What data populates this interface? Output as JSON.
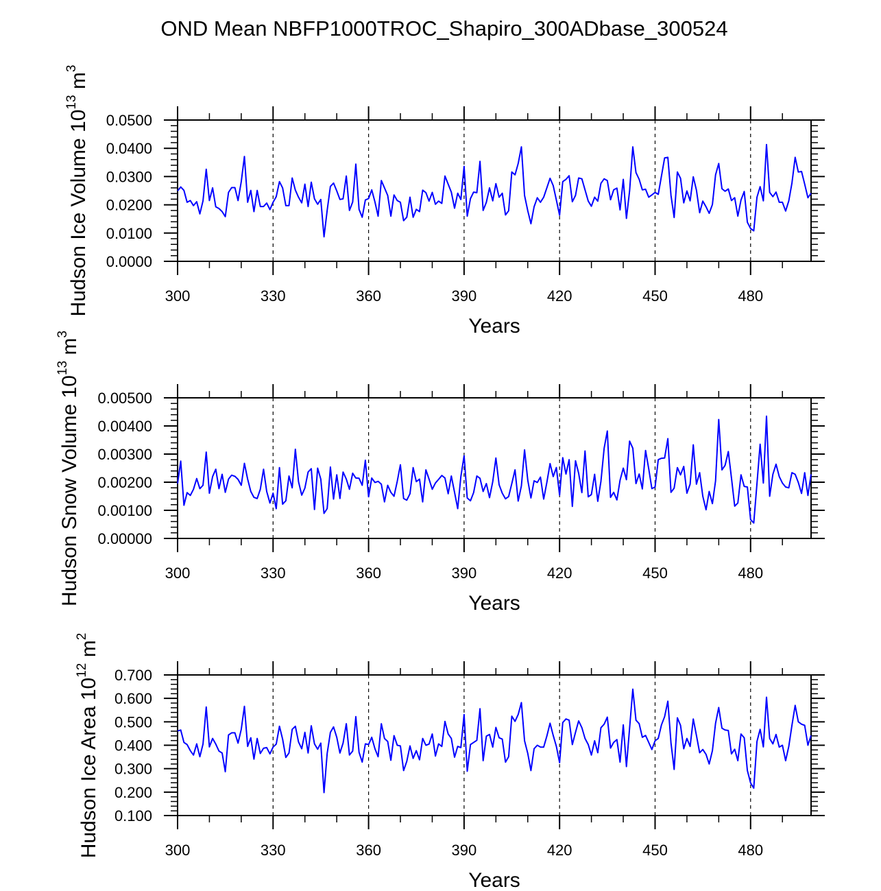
{
  "title": "OND Mean NBFP1000TROC_Shapiro_300ADbase_300524",
  "colors": {
    "line": "#0000ff",
    "axis": "#000000"
  },
  "chart_data": [
    {
      "type": "line",
      "ylabel": {
        "text": "Hudson Ice Volume 10",
        "exp": "13",
        "unit": " m",
        "unit_exp": "3"
      },
      "xlabel": "Years",
      "x_start": 300,
      "xlim": [
        300,
        499
      ],
      "xticks": [
        300,
        330,
        360,
        390,
        420,
        450,
        480
      ],
      "xtick_labels": [
        "300",
        "330",
        "360",
        "390",
        "420",
        "450",
        "480"
      ],
      "ylim": [
        0.0,
        0.05
      ],
      "yticks": [
        0.0,
        0.01,
        0.02,
        0.03,
        0.04,
        0.05
      ],
      "ytick_labels": [
        "0.0000",
        "0.0100",
        "0.0200",
        "0.0300",
        "0.0400",
        "0.0500"
      ],
      "yminor_step": 0.002,
      "grid": "dashed vertical lines at major x ticks",
      "values": [
        0.0249,
        0.0263,
        0.0251,
        0.0209,
        0.0215,
        0.0197,
        0.0211,
        0.0168,
        0.0214,
        0.0326,
        0.0215,
        0.026,
        0.0193,
        0.0187,
        0.0176,
        0.0158,
        0.0244,
        0.0261,
        0.0261,
        0.0215,
        0.0282,
        0.0371,
        0.0209,
        0.0251,
        0.0176,
        0.0251,
        0.0194,
        0.0194,
        0.0206,
        0.0183,
        0.0209,
        0.0229,
        0.0282,
        0.026,
        0.0197,
        0.0197,
        0.0295,
        0.0252,
        0.0227,
        0.0207,
        0.0273,
        0.0194,
        0.028,
        0.0221,
        0.0202,
        0.0219,
        0.0087,
        0.018,
        0.0265,
        0.0277,
        0.0249,
        0.0219,
        0.0221,
        0.0302,
        0.018,
        0.021,
        0.0344,
        0.0184,
        0.0156,
        0.0217,
        0.0222,
        0.0253,
        0.021,
        0.016,
        0.0286,
        0.026,
        0.0233,
        0.016,
        0.0235,
        0.0215,
        0.0209,
        0.0144,
        0.0156,
        0.0227,
        0.0156,
        0.0184,
        0.0176,
        0.0252,
        0.0243,
        0.0213,
        0.0244,
        0.0202,
        0.0213,
        0.0205,
        0.0302,
        0.0273,
        0.0245,
        0.0188,
        0.0241,
        0.0219,
        0.0336,
        0.016,
        0.0222,
        0.0245,
        0.0243,
        0.0354,
        0.018,
        0.0209,
        0.026,
        0.0214,
        0.0275,
        0.0227,
        0.0241,
        0.0164,
        0.0179,
        0.0316,
        0.0306,
        0.0346,
        0.0405,
        0.0233,
        0.0179,
        0.0133,
        0.0193,
        0.0225,
        0.0209,
        0.0227,
        0.026,
        0.0294,
        0.0268,
        0.0217,
        0.0163,
        0.0282,
        0.029,
        0.0303,
        0.0211,
        0.0233,
        0.0295,
        0.0292,
        0.0253,
        0.0213,
        0.0195,
        0.0227,
        0.0213,
        0.0276,
        0.0292,
        0.0286,
        0.0218,
        0.0253,
        0.0259,
        0.0182,
        0.029,
        0.0152,
        0.0249,
        0.0405,
        0.0314,
        0.029,
        0.0253,
        0.0255,
        0.0227,
        0.0235,
        0.0244,
        0.0237,
        0.0302,
        0.0366,
        0.0368,
        0.0233,
        0.0155,
        0.0316,
        0.0294,
        0.0207,
        0.0249,
        0.0214,
        0.0299,
        0.0252,
        0.0172,
        0.0213,
        0.0193,
        0.017,
        0.0201,
        0.0306,
        0.0346,
        0.0257,
        0.0248,
        0.0256,
        0.0215,
        0.0225,
        0.016,
        0.0217,
        0.0247,
        0.0138,
        0.0116,
        0.0108,
        0.0227,
        0.0264,
        0.0214,
        0.0413,
        0.0244,
        0.0229,
        0.0245,
        0.0209,
        0.0209,
        0.0178,
        0.0214,
        0.0277,
        0.0368,
        0.0316,
        0.0318,
        0.0273,
        0.0225,
        0.0241
      ]
    },
    {
      "type": "line",
      "ylabel": {
        "text": "Hudson Snow Volume 10",
        "exp": "13",
        "unit": " m",
        "unit_exp": "3"
      },
      "xlabel": "Years",
      "x_start": 300,
      "xlim": [
        300,
        499
      ],
      "xticks": [
        300,
        330,
        360,
        390,
        420,
        450,
        480
      ],
      "xtick_labels": [
        "300",
        "330",
        "360",
        "390",
        "420",
        "450",
        "480"
      ],
      "ylim": [
        0.0,
        0.005
      ],
      "yticks": [
        0.0,
        0.001,
        0.002,
        0.003,
        0.004,
        0.005
      ],
      "ytick_labels": [
        "0.00000",
        "0.00100",
        "0.00200",
        "0.00300",
        "0.00400",
        "0.00500"
      ],
      "yminor_step": 0.0002,
      "grid": "dashed vertical lines at major x ticks",
      "values": [
        0.00195,
        0.00275,
        0.00118,
        0.00163,
        0.00153,
        0.00175,
        0.00213,
        0.00177,
        0.00189,
        0.00307,
        0.00161,
        0.0022,
        0.00246,
        0.00177,
        0.00228,
        0.00164,
        0.00211,
        0.00225,
        0.00221,
        0.0021,
        0.00189,
        0.00267,
        0.00211,
        0.00167,
        0.00146,
        0.00142,
        0.00175,
        0.00246,
        0.00167,
        0.00126,
        0.00161,
        0.00106,
        0.00252,
        0.00122,
        0.00134,
        0.00222,
        0.0018,
        0.00317,
        0.00202,
        0.00154,
        0.00179,
        0.00236,
        0.00248,
        0.00103,
        0.0025,
        0.00211,
        0.00089,
        0.00106,
        0.00254,
        0.0014,
        0.00226,
        0.00142,
        0.00236,
        0.00211,
        0.00175,
        0.00232,
        0.00215,
        0.00214,
        0.00189,
        0.00278,
        0.00148,
        0.00215,
        0.00199,
        0.00203,
        0.00193,
        0.0013,
        0.00189,
        0.00164,
        0.0015,
        0.00203,
        0.00262,
        0.00142,
        0.00136,
        0.00159,
        0.00252,
        0.00202,
        0.00211,
        0.0013,
        0.00244,
        0.00211,
        0.00175,
        0.00197,
        0.0021,
        0.00224,
        0.00215,
        0.00159,
        0.00222,
        0.00164,
        0.00106,
        0.0022,
        0.00294,
        0.00144,
        0.00134,
        0.00163,
        0.00222,
        0.00214,
        0.00167,
        0.00195,
        0.00145,
        0.00202,
        0.00286,
        0.00191,
        0.00161,
        0.00141,
        0.00149,
        0.00195,
        0.00244,
        0.00133,
        0.00187,
        0.00315,
        0.00207,
        0.00144,
        0.00205,
        0.00199,
        0.00218,
        0.0014,
        0.00199,
        0.00266,
        0.0022,
        0.00252,
        0.00154,
        0.00287,
        0.00229,
        0.0028,
        0.00114,
        0.00276,
        0.00232,
        0.00163,
        0.00311,
        0.00148,
        0.00156,
        0.00228,
        0.00132,
        0.00203,
        0.00321,
        0.00382,
        0.00146,
        0.00164,
        0.00137,
        0.00207,
        0.0025,
        0.00209,
        0.00346,
        0.00321,
        0.00195,
        0.00229,
        0.00176,
        0.00313,
        0.00248,
        0.00177,
        0.00183,
        0.0028,
        0.00285,
        0.00286,
        0.00355,
        0.00164,
        0.00179,
        0.00252,
        0.00226,
        0.00256,
        0.00161,
        0.00193,
        0.00333,
        0.00193,
        0.00234,
        0.0015,
        0.00102,
        0.00167,
        0.00124,
        0.00205,
        0.00423,
        0.00244,
        0.0026,
        0.00309,
        0.00215,
        0.00115,
        0.00126,
        0.00226,
        0.00185,
        0.00183,
        0.00067,
        0.00055,
        0.00195,
        0.00335,
        0.00197,
        0.00435,
        0.0015,
        0.00228,
        0.00264,
        0.0022,
        0.00197,
        0.00183,
        0.0018,
        0.00234,
        0.00228,
        0.00199,
        0.0016,
        0.00234,
        0.00153,
        0.00228
      ]
    },
    {
      "type": "line",
      "ylabel": {
        "text": "Hudson Ice Area 10",
        "exp": "12",
        "unit": " m",
        "unit_exp": "2"
      },
      "xlabel": "Years",
      "x_start": 300,
      "xlim": [
        300,
        499
      ],
      "xticks": [
        300,
        330,
        360,
        390,
        420,
        450,
        480
      ],
      "xtick_labels": [
        "300",
        "330",
        "360",
        "390",
        "420",
        "450",
        "480"
      ],
      "ylim": [
        0.1,
        0.7
      ],
      "yticks": [
        0.1,
        0.2,
        0.3,
        0.4,
        0.5,
        0.6,
        0.7
      ],
      "ytick_labels": [
        "0.100",
        "0.200",
        "0.300",
        "0.400",
        "0.500",
        "0.600",
        "0.700"
      ],
      "yminor_step": 0.02,
      "grid": "dashed vertical lines at major x ticks",
      "values": [
        0.461,
        0.465,
        0.412,
        0.403,
        0.377,
        0.358,
        0.406,
        0.351,
        0.405,
        0.563,
        0.393,
        0.429,
        0.405,
        0.375,
        0.367,
        0.287,
        0.444,
        0.453,
        0.453,
        0.409,
        0.468,
        0.566,
        0.395,
        0.432,
        0.341,
        0.429,
        0.365,
        0.387,
        0.39,
        0.363,
        0.392,
        0.405,
        0.481,
        0.426,
        0.348,
        0.367,
        0.468,
        0.481,
        0.414,
        0.385,
        0.455,
        0.367,
        0.483,
        0.406,
        0.383,
        0.409,
        0.198,
        0.365,
        0.455,
        0.478,
        0.434,
        0.367,
        0.409,
        0.492,
        0.358,
        0.375,
        0.522,
        0.37,
        0.328,
        0.406,
        0.403,
        0.434,
        0.385,
        0.351,
        0.492,
        0.429,
        0.416,
        0.336,
        0.441,
        0.4,
        0.397,
        0.292,
        0.331,
        0.397,
        0.344,
        0.377,
        0.338,
        0.429,
        0.4,
        0.405,
        0.448,
        0.354,
        0.406,
        0.395,
        0.502,
        0.448,
        0.429,
        0.349,
        0.395,
        0.39,
        0.531,
        0.289,
        0.403,
        0.412,
        0.421,
        0.556,
        0.334,
        0.439,
        0.446,
        0.392,
        0.476,
        0.432,
        0.426,
        0.328,
        0.351,
        0.524,
        0.502,
        0.531,
        0.582,
        0.419,
        0.365,
        0.292,
        0.385,
        0.4,
        0.392,
        0.392,
        0.439,
        0.494,
        0.442,
        0.395,
        0.326,
        0.497,
        0.512,
        0.507,
        0.403,
        0.455,
        0.504,
        0.475,
        0.429,
        0.403,
        0.358,
        0.419,
        0.368,
        0.475,
        0.49,
        0.52,
        0.388,
        0.412,
        0.424,
        0.328,
        0.487,
        0.309,
        0.473,
        0.639,
        0.507,
        0.492,
        0.434,
        0.442,
        0.412,
        0.382,
        0.419,
        0.429,
        0.487,
        0.522,
        0.588,
        0.409,
        0.297,
        0.517,
        0.485,
        0.385,
        0.429,
        0.395,
        0.512,
        0.442,
        0.368,
        0.382,
        0.361,
        0.32,
        0.377,
        0.494,
        0.561,
        0.473,
        0.465,
        0.463,
        0.363,
        0.383,
        0.334,
        0.448,
        0.432,
        0.292,
        0.239,
        0.217,
        0.416,
        0.468,
        0.393,
        0.605,
        0.429,
        0.406,
        0.446,
        0.392,
        0.4,
        0.334,
        0.395,
        0.485,
        0.57,
        0.5,
        0.49,
        0.485,
        0.4,
        0.442
      ]
    }
  ]
}
